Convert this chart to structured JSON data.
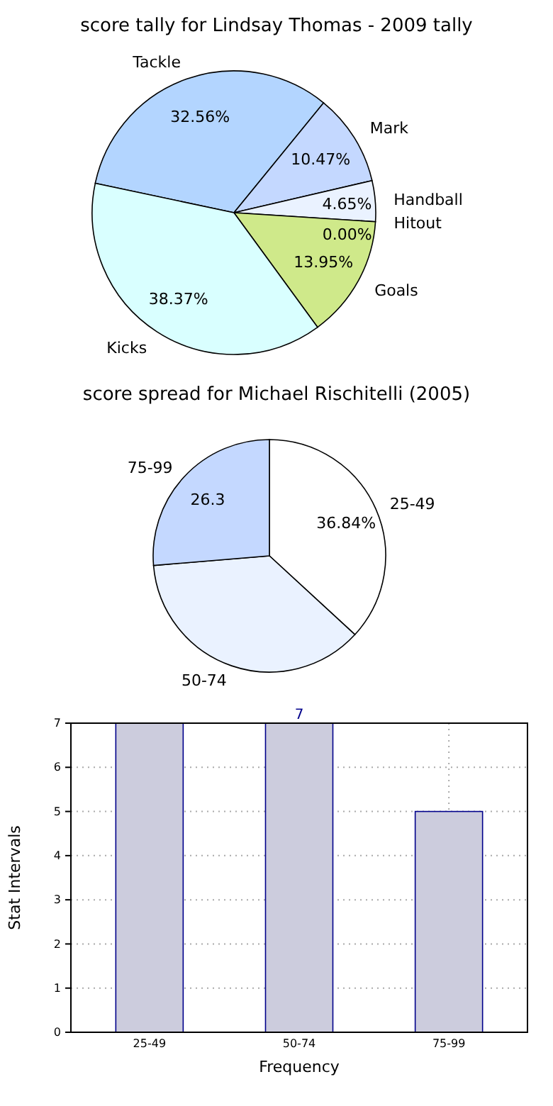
{
  "chart_data": [
    {
      "type": "pie",
      "title": "score tally for Lindsay Thomas - 2009 tally",
      "categories": [
        "Tackle",
        "Mark",
        "Handball",
        "Hitout",
        "Goals",
        "Kicks"
      ],
      "values": [
        32.56,
        10.47,
        4.65,
        0.0,
        13.95,
        38.37
      ],
      "colors": [
        "#b3d5ff",
        "#c4d8ff",
        "#eaf2ff",
        "#dde8ff",
        "#cfe98a",
        "#d9ffff"
      ],
      "value_labels": [
        "32.56%",
        "10.47%",
        "4.65%",
        "0.00%",
        "13.95%",
        "38.37%"
      ]
    },
    {
      "type": "pie",
      "title": "score spread for Michael Rischitelli (2005)",
      "categories": [
        "25-49",
        "50-74",
        "75-99"
      ],
      "values": [
        36.84,
        36.84,
        26.32
      ],
      "colors": [
        "#ffffff",
        "#eaf2ff",
        "#c4d8ff"
      ],
      "value_labels": [
        "36.84%",
        null,
        "26.3"
      ]
    },
    {
      "type": "bar",
      "categories": [
        "25-49",
        "50-74",
        "75-99"
      ],
      "values": [
        7,
        7,
        5
      ],
      "color": "#ccccdd",
      "ylim": [
        0,
        7
      ],
      "yticks": [
        0,
        1,
        2,
        3,
        4,
        5,
        6,
        7
      ],
      "xlabel": "Frequency",
      "ylabel": "Stat Intervals",
      "grid": true,
      "value_labels": [
        null,
        "7",
        null
      ]
    }
  ]
}
